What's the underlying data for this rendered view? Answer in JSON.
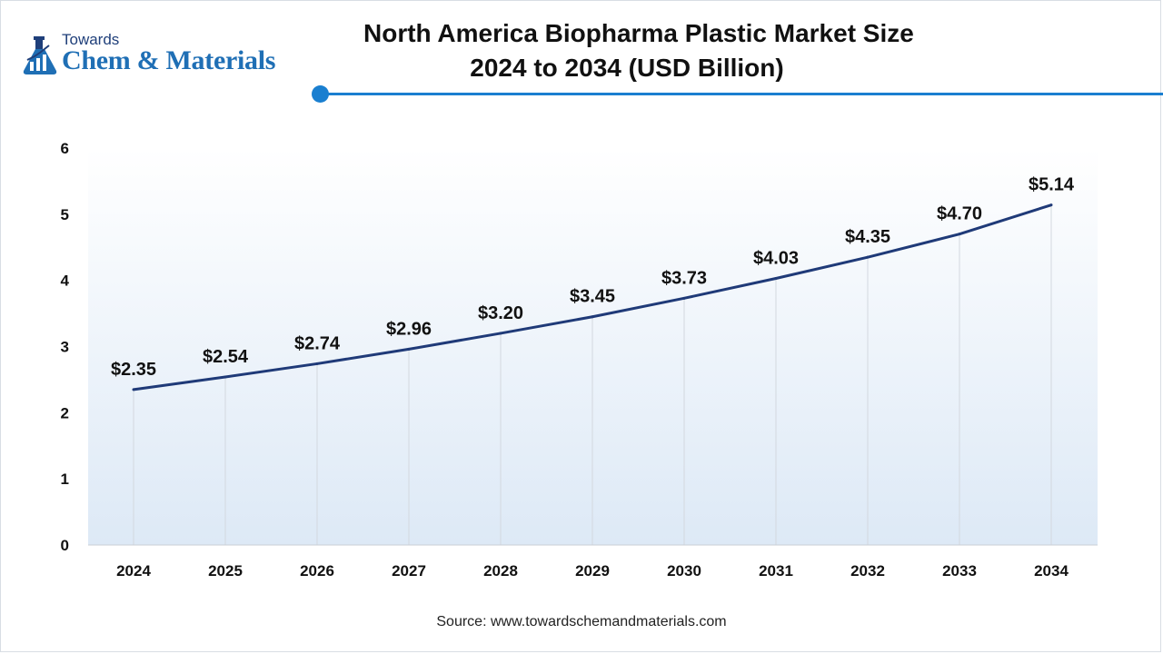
{
  "brand": {
    "top": "Towards",
    "main": "Chem & Materials"
  },
  "header": {
    "title_line1": "North America Biopharma Plastic Market Size",
    "title_line2": "2024 to 2034 (USD Billion)"
  },
  "footer": {
    "source": "Source: www.towardschemandmaterials.com"
  },
  "colors": {
    "line": "#1f3a78",
    "accent": "#1a7fd0",
    "area_top": "#ffffff",
    "area_bottom": "#dde9f6"
  },
  "chart_data": {
    "type": "line",
    "title": "North America Biopharma Plastic Market Size 2024 to 2034 (USD Billion)",
    "xlabel": "",
    "ylabel": "",
    "categories": [
      "2024",
      "2025",
      "2026",
      "2027",
      "2028",
      "2029",
      "2030",
      "2031",
      "2032",
      "2033",
      "2034"
    ],
    "values": [
      2.35,
      2.54,
      2.74,
      2.96,
      3.2,
      3.45,
      3.73,
      4.03,
      4.35,
      4.7,
      5.14
    ],
    "data_labels": [
      "$2.35",
      "$2.54",
      "$2.74",
      "$2.96",
      "$3.20",
      "$3.45",
      "$3.73",
      "$4.03",
      "$4.35",
      "$4.70",
      "$5.14"
    ],
    "yticks": [
      "0",
      "1",
      "2",
      "3",
      "4",
      "5",
      "6"
    ],
    "ylim": [
      0,
      6
    ],
    "grid": "vertical"
  }
}
